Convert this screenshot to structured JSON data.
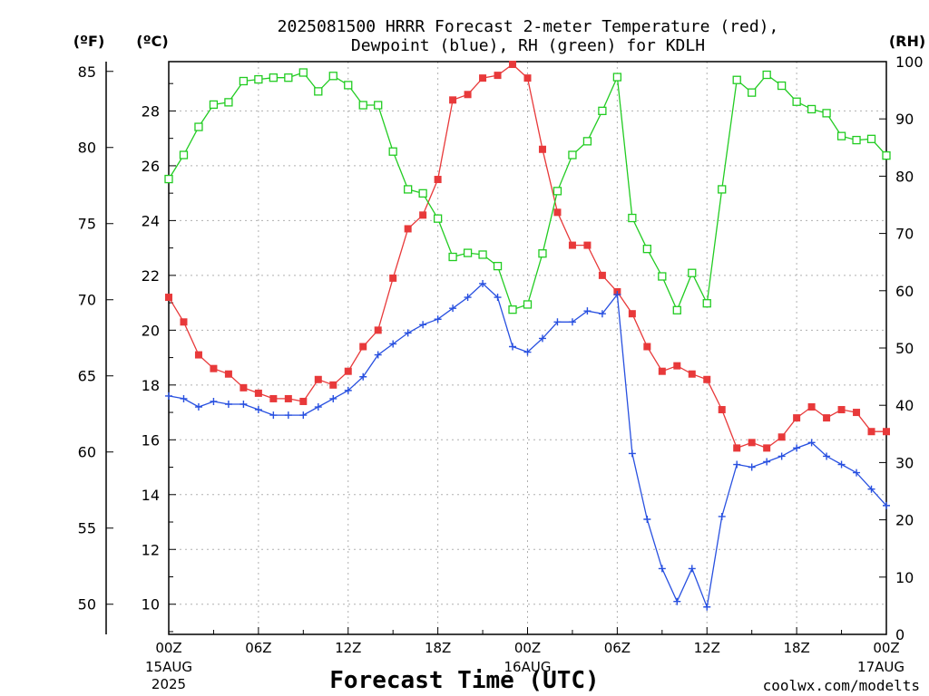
{
  "title_line1": "2025081500 HRRR Forecast 2-meter Temperature (red),",
  "title_line2": "Dewpoint (blue), RH (green) for KDLH",
  "xlabel": "Forecast Time (UTC)",
  "credit": "coolwx.com/modelts",
  "unit_f": "(ºF)",
  "unit_c": "(ºC)",
  "unit_rh": "(RH)",
  "colors": {
    "temperature": "#e8393a",
    "dewpoint": "#2850e0",
    "rh": "#22cc22",
    "credit": "#e03030"
  },
  "chart_data": {
    "type": "line",
    "x_tick_labels": [
      "00Z",
      "06Z",
      "12Z",
      "18Z",
      "00Z",
      "06Z",
      "12Z",
      "18Z",
      "00Z"
    ],
    "x_tick_hours": [
      0,
      6,
      12,
      18,
      24,
      30,
      36,
      42,
      48
    ],
    "date_labels": [
      {
        "hour": 0,
        "line1": "15AUG",
        "line2": "2025"
      },
      {
        "hour": 24,
        "line1": "16AUG",
        "line2": ""
      },
      {
        "hour": 48,
        "line1": "17AUG",
        "line2": ""
      }
    ],
    "x_range_hours": [
      0,
      48
    ],
    "left_axis_c": {
      "range": [
        8.9,
        29.8
      ],
      "ticks": [
        10,
        12,
        14,
        16,
        18,
        20,
        22,
        24,
        26,
        28
      ]
    },
    "left_axis_f": {
      "ticks": [
        50,
        55,
        60,
        65,
        70,
        75,
        80,
        85
      ]
    },
    "right_axis_rh": {
      "range": [
        0,
        100
      ],
      "ticks": [
        0,
        10,
        20,
        30,
        40,
        50,
        60,
        70,
        80,
        90,
        100
      ]
    },
    "grid": true,
    "hours": [
      0,
      1,
      2,
      3,
      4,
      5,
      6,
      7,
      8,
      9,
      10,
      11,
      12,
      13,
      14,
      15,
      16,
      17,
      18,
      19,
      20,
      21,
      22,
      23,
      24,
      25,
      26,
      27,
      28,
      29,
      30,
      31,
      32,
      33,
      34,
      35,
      36,
      37,
      38,
      39,
      40,
      41,
      42,
      43,
      44,
      45,
      46,
      47,
      48
    ],
    "series": [
      {
        "key": "temperature",
        "marker": "filled-square",
        "axis": "celsius",
        "values": [
          21.2,
          20.3,
          19.1,
          18.6,
          18.4,
          17.9,
          17.7,
          17.5,
          17.5,
          17.4,
          18.2,
          18.0,
          18.5,
          19.4,
          20.0,
          21.9,
          23.7,
          24.2,
          25.5,
          28.4,
          28.6,
          29.2,
          29.3,
          29.7,
          29.2,
          26.6,
          24.3,
          23.1,
          23.1,
          22.0,
          21.4,
          20.6,
          19.4,
          18.5,
          18.7,
          18.4,
          18.2,
          17.1,
          15.7,
          15.9,
          15.7,
          16.1,
          16.8,
          17.2,
          16.8,
          17.1,
          17.0,
          16.3,
          16.3
        ]
      },
      {
        "key": "dewpoint",
        "marker": "plus",
        "axis": "celsius",
        "values": [
          17.6,
          17.5,
          17.2,
          17.4,
          17.3,
          17.3,
          17.1,
          16.9,
          16.9,
          16.9,
          17.2,
          17.5,
          17.8,
          18.3,
          19.1,
          19.5,
          19.9,
          20.2,
          20.4,
          20.8,
          21.2,
          21.7,
          21.2,
          19.4,
          19.2,
          19.7,
          20.3,
          20.3,
          20.7,
          20.6,
          21.3,
          15.5,
          13.1,
          11.3,
          10.1,
          11.3,
          9.9,
          13.2,
          15.1,
          15.0,
          15.2,
          15.4,
          15.7,
          15.9,
          15.4,
          15.1,
          14.8,
          14.2,
          13.6
        ]
      },
      {
        "key": "rh",
        "marker": "open-square",
        "axis": "rh",
        "values": [
          79.5,
          83.7,
          88.6,
          92.5,
          92.9,
          96.6,
          96.9,
          97.2,
          97.2,
          98.1,
          94.8,
          97.5,
          95.9,
          92.4,
          92.4,
          84.3,
          77.7,
          77.0,
          72.6,
          65.9,
          66.6,
          66.3,
          64.3,
          56.7,
          57.6,
          66.5,
          77.4,
          83.7,
          86.1,
          91.4,
          97.3,
          72.7,
          67.3,
          62.5,
          56.6,
          63.1,
          57.8,
          77.7,
          96.8,
          94.6,
          97.7,
          95.8,
          93.0,
          91.7,
          91.0,
          87.0,
          86.3,
          86.5,
          83.6
        ]
      }
    ]
  }
}
